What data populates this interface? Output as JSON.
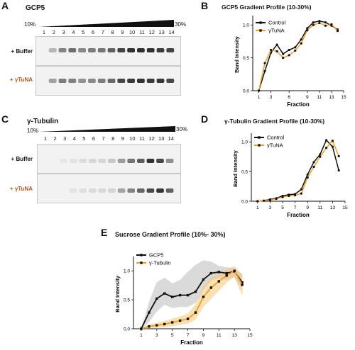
{
  "panels": {
    "A": {
      "letter": "A",
      "title": "GCP5",
      "pct_low": "10%",
      "pct_high": "30%",
      "lanes": [
        "1",
        "2",
        "3",
        "4",
        "5",
        "6",
        "7",
        "8",
        "9",
        "10",
        "11",
        "12",
        "13",
        "14"
      ],
      "rows": [
        {
          "label": "+ Buffer",
          "color": "#111111"
        },
        {
          "label": "+ γTuNA",
          "color": "#c05a1a"
        }
      ]
    },
    "C": {
      "letter": "C",
      "title": "γ-Tubulin",
      "pct_low": "10%",
      "pct_high": "30%",
      "lanes": [
        "1",
        "2",
        "3",
        "4",
        "5",
        "6",
        "7",
        "8",
        "9",
        "10",
        "11",
        "12",
        "13",
        "14"
      ],
      "rows": [
        {
          "label": "+ Buffer",
          "color": "#111111"
        },
        {
          "label": "+ γTuNA",
          "color": "#c05a1a"
        }
      ]
    }
  },
  "colors": {
    "control": "#111111",
    "tuna": "#f0a020",
    "tuna_dark": "#c05a1a",
    "shade_grey": "#bdbdbd",
    "shade_orange": "#f5c77a"
  },
  "chart_data": [
    {
      "id": "B",
      "letter": "B",
      "type": "line",
      "title": "GCP5 Gradient Profile (10-30%)",
      "xlabel": "Fraction",
      "ylabel": "Band Intensity",
      "xlim": [
        0,
        15
      ],
      "ylim": [
        0,
        1.1
      ],
      "xticks": [
        "1",
        "3",
        "6",
        "9",
        "11",
        "13",
        "15"
      ],
      "yticks": [
        "0.0",
        "0.5",
        "1.0"
      ],
      "legend_position": "top-right",
      "series": [
        {
          "name": "Control",
          "color": "#111111",
          "x": [
            1,
            2,
            3,
            4,
            5,
            6,
            7,
            8,
            9,
            10,
            11,
            12,
            13,
            14
          ],
          "y": [
            0.0,
            0.3,
            0.58,
            0.7,
            0.56,
            0.62,
            0.66,
            0.78,
            0.95,
            1.04,
            1.06,
            1.04,
            0.99,
            0.93
          ]
        },
        {
          "name": "γTuNA",
          "color": "#f0a020",
          "x": [
            1,
            2,
            3,
            4,
            5,
            6,
            7,
            8,
            9,
            10,
            11,
            12,
            13,
            14
          ],
          "y": [
            0.0,
            0.42,
            0.62,
            0.6,
            0.5,
            0.54,
            0.61,
            0.72,
            0.92,
            1.0,
            1.03,
            0.99,
            1.01,
            0.91
          ]
        }
      ]
    },
    {
      "id": "D",
      "letter": "D",
      "type": "line",
      "title": "γ-Tubulin Gradient Profile (10-30%)",
      "xlabel": "Fraction",
      "ylabel": "Band Intensity",
      "xlim": [
        0,
        15
      ],
      "ylim": [
        0,
        1.1
      ],
      "xticks": [
        "1",
        "3",
        "5",
        "7",
        "9",
        "11",
        "13",
        "15"
      ],
      "yticks": [
        "0.0",
        "0.5",
        "1.0"
      ],
      "legend_position": "top-left",
      "series": [
        {
          "name": "Control",
          "color": "#111111",
          "x": [
            1,
            2,
            3,
            4,
            5,
            6,
            7,
            8,
            9,
            10,
            11,
            12,
            13,
            14
          ],
          "y": [
            0.0,
            0.01,
            0.03,
            0.05,
            0.09,
            0.11,
            0.12,
            0.2,
            0.45,
            0.66,
            0.79,
            1.03,
            0.92,
            0.52
          ]
        },
        {
          "name": "γTuNA",
          "color": "#f0a020",
          "x": [
            1,
            2,
            3,
            4,
            5,
            6,
            7,
            8,
            9,
            10,
            11,
            12,
            13,
            14
          ],
          "y": [
            0.0,
            0.01,
            0.02,
            0.04,
            0.07,
            0.09,
            0.1,
            0.13,
            0.4,
            0.58,
            0.75,
            0.9,
            1.02,
            0.76
          ]
        }
      ]
    },
    {
      "id": "E",
      "letter": "E",
      "type": "line",
      "title": "Sucrose Gradient Profile (10%- 30%)",
      "xlabel": "Fraction",
      "ylabel": "Band Intensity",
      "xlim": [
        0,
        15
      ],
      "ylim": [
        0,
        1.2
      ],
      "xticks": [
        "1",
        "3",
        "5",
        "7",
        "9",
        "11",
        "13",
        "15"
      ],
      "yticks": [
        "0.0",
        "0.5",
        "1.0"
      ],
      "legend_position": "top-left",
      "series": [
        {
          "name": "GCP5",
          "color": "#111111",
          "shade": "#bdbdbd",
          "x": [
            1,
            2,
            3,
            4,
            5,
            6,
            7,
            8,
            9,
            10,
            11,
            12,
            13,
            14
          ],
          "y": [
            0.0,
            0.28,
            0.52,
            0.61,
            0.55,
            0.58,
            0.58,
            0.64,
            0.85,
            0.96,
            0.98,
            0.96,
            0.99,
            0.8
          ],
          "lo": [
            0.0,
            0.12,
            0.3,
            0.42,
            0.36,
            0.38,
            0.38,
            0.45,
            0.68,
            0.84,
            0.88,
            0.85,
            0.9,
            0.68
          ],
          "hi": [
            0.0,
            0.45,
            0.8,
            0.88,
            0.78,
            0.84,
            0.98,
            1.1,
            1.18,
            1.16,
            1.08,
            1.06,
            1.05,
            0.94
          ]
        },
        {
          "name": "γ-Tubulin",
          "color": "#f0a020",
          "shade": "#f5c77a",
          "x": [
            1,
            2,
            3,
            4,
            5,
            6,
            7,
            8,
            9,
            10,
            11,
            12,
            13,
            14
          ],
          "y": [
            0.0,
            0.04,
            0.06,
            0.08,
            0.11,
            0.14,
            0.17,
            0.28,
            0.55,
            0.71,
            0.82,
            0.92,
            1.0,
            0.76
          ],
          "lo": [
            0.0,
            0.01,
            0.02,
            0.03,
            0.05,
            0.07,
            0.09,
            0.16,
            0.38,
            0.52,
            0.66,
            0.8,
            0.9,
            0.58
          ],
          "hi": [
            0.0,
            0.07,
            0.1,
            0.13,
            0.17,
            0.21,
            0.26,
            0.42,
            0.73,
            0.88,
            0.96,
            1.02,
            1.08,
            0.92
          ]
        }
      ]
    }
  ]
}
